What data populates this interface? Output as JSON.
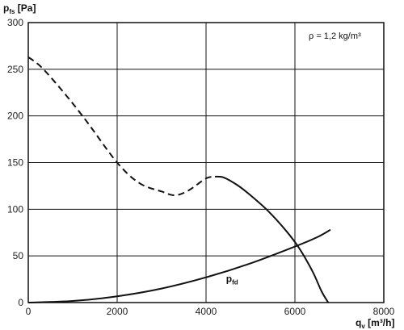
{
  "chart_data": {
    "type": "line",
    "ylabel": {
      "main": "p",
      "sub": "fs",
      "unit": " [Pa]"
    },
    "xlabel": {
      "main": "q",
      "sub": "v",
      "unit": " [m³/h]"
    },
    "annotation": "ρ = 1,2 kg/m³",
    "xlim": [
      0,
      8000
    ],
    "ylim": [
      0,
      300
    ],
    "xticks": [
      0,
      2000,
      4000,
      6000,
      8000
    ],
    "yticks": [
      0,
      50,
      100,
      150,
      200,
      250,
      300
    ],
    "grid": true,
    "series": [
      {
        "style": "dashed",
        "x": [
          0,
          300,
          800,
          1300,
          2000,
          2500,
          3000,
          3300,
          3600,
          4000,
          4200
        ],
        "y": [
          263,
          252,
          225,
          195,
          150,
          128,
          119,
          115,
          120,
          133,
          135
        ]
      },
      {
        "style": "solid",
        "x": [
          4200,
          4400,
          4700,
          5000,
          5400,
          5800,
          6100,
          6400,
          6600,
          6750
        ],
        "y": [
          135,
          134,
          126,
          115,
          98,
          77,
          58,
          33,
          12,
          0
        ]
      },
      {
        "name": {
          "main": "p",
          "sub": "fd"
        },
        "style": "solid",
        "x": [
          0,
          1000,
          2000,
          3000,
          4000,
          5000,
          6000,
          6500,
          6800
        ],
        "y": [
          0,
          1.7,
          6.7,
          15,
          27,
          42,
          60,
          70,
          78
        ]
      }
    ],
    "curve_label_anchor": {
      "x": 4450,
      "y": 22
    }
  }
}
